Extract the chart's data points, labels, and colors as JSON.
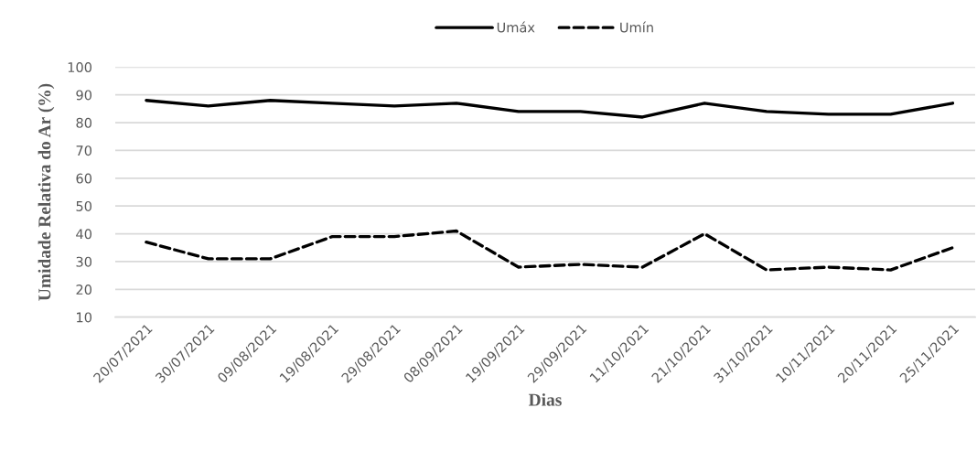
{
  "chart_data": {
    "type": "line",
    "xlabel": "Dias",
    "ylabel": "Umidade Relativa do Ar (%)",
    "categories": [
      "20/07/2021",
      "30/07/2021",
      "09/08/2021",
      "19/08/2021",
      "29/08/2021",
      "08/09/2021",
      "19/09/2021",
      "29/09/2021",
      "11/10/2021",
      "21/10/2021",
      "31/10/2021",
      "10/11/2021",
      "20/11/2021",
      "25/11/2021"
    ],
    "series": [
      {
        "name": "Umáx",
        "color": "#000000",
        "line_style": "solid",
        "values": [
          88,
          86,
          88,
          87,
          86,
          87,
          84,
          84,
          82,
          87,
          84,
          83,
          83,
          87
        ]
      },
      {
        "name": "Umín",
        "color": "#000000",
        "line_style": "dashed",
        "values": [
          37,
          31,
          31,
          39,
          39,
          41,
          28,
          29,
          28,
          40,
          27,
          28,
          27,
          35
        ]
      }
    ],
    "ylim": [
      10,
      100
    ],
    "yticks": [
      10,
      20,
      30,
      40,
      50,
      60,
      70,
      80,
      90,
      100
    ],
    "grid": "y",
    "legend": "top"
  }
}
